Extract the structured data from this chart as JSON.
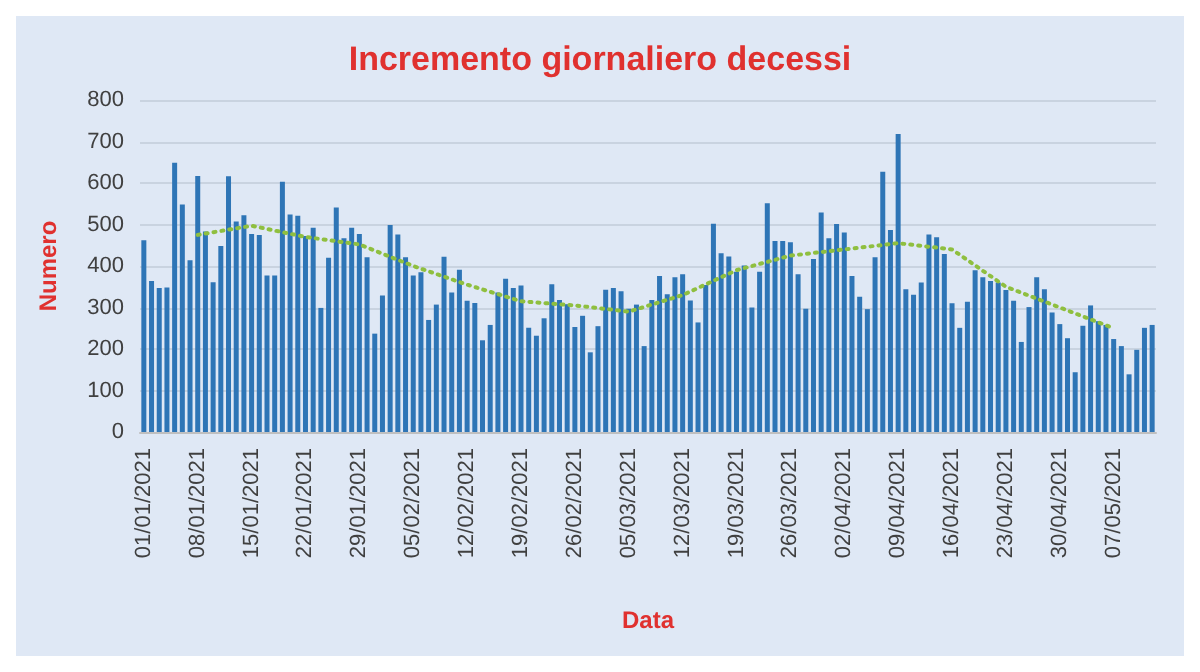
{
  "chart_data": {
    "type": "bar",
    "title": "Incremento giornaliero decessi",
    "xlabel": "Data",
    "ylabel": "Numero",
    "categories": [
      "01/01/2021",
      null,
      null,
      null,
      null,
      null,
      null,
      "08/01/2021",
      null,
      null,
      null,
      null,
      null,
      null,
      "15/01/2021",
      null,
      null,
      null,
      null,
      null,
      null,
      "22/01/2021",
      null,
      null,
      null,
      null,
      null,
      null,
      "29/01/2021",
      null,
      null,
      null,
      null,
      null,
      null,
      "05/02/2021",
      null,
      null,
      null,
      null,
      null,
      null,
      "12/02/2021",
      null,
      null,
      null,
      null,
      null,
      null,
      "19/02/2021",
      null,
      null,
      null,
      null,
      null,
      null,
      "26/02/2021",
      null,
      null,
      null,
      null,
      null,
      null,
      "05/03/2021",
      null,
      null,
      null,
      null,
      null,
      null,
      "12/03/2021",
      null,
      null,
      null,
      null,
      null,
      null,
      "19/03/2021",
      null,
      null,
      null,
      null,
      null,
      null,
      "26/03/2021",
      null,
      null,
      null,
      null,
      null,
      null,
      "02/04/2021",
      null,
      null,
      null,
      null,
      null,
      null,
      "09/04/2021",
      null,
      null,
      null,
      null,
      null,
      null,
      "16/04/2021",
      null,
      null,
      null,
      null,
      null,
      null,
      "23/04/2021",
      null,
      null,
      null,
      null,
      null,
      null,
      "30/04/2021",
      null,
      null,
      null,
      null,
      null,
      null,
      "07/05/2021",
      null,
      null,
      null,
      null,
      null
    ],
    "series": [
      {
        "color": "#2e75b6",
        "values": [
          462,
          364,
          347,
          348,
          649,
          548,
          414,
          617,
          483,
          361,
          448,
          616,
          507,
          522,
          477,
          475,
          377,
          377,
          603,
          524,
          521,
          472,
          492,
          299,
          420,
          541,
          467,
          492,
          477,
          421,
          237,
          329,
          499,
          476,
          421,
          377,
          385,
          270,
          307,
          422,
          336,
          391,
          316,
          311,
          221,
          258,
          336,
          369,
          347,
          353,
          251,
          232,
          274,
          356,
          318,
          308,
          253,
          280,
          192,
          255,
          343,
          347,
          339,
          297,
          307,
          207,
          318,
          376,
          332,
          373,
          380,
          317,
          264,
          354,
          502,
          431,
          423,
          386,
          401,
          300,
          386,
          551,
          460,
          460,
          457,
          380,
          297,
          417,
          529,
          467,
          501,
          481,
          376,
          326,
          296,
          421,
          627,
          487,
          718,
          344,
          331,
          360,
          476,
          469,
          429,
          310,
          251,
          314,
          390,
          373,
          364,
          360,
          342,
          316,
          217,
          301,
          373,
          344,
          288,
          260,
          226,
          144,
          256,
          305,
          267,
          258,
          224,
          207,
          139,
          198,
          251,
          258
        ]
      },
      {
        "type": "line",
        "color": "#8fbf3f",
        "line_style": "dotted",
        "marker": "none",
        "x": [
          "08/01/2021",
          "15/01/2021",
          "22/01/2021",
          "29/01/2021",
          "05/02/2021",
          "12/02/2021",
          "19/02/2021",
          "26/02/2021",
          "05/03/2021",
          "12/03/2021",
          "19/03/2021",
          "26/03/2021",
          "02/04/2021",
          "09/04/2021",
          "16/04/2021",
          "23/04/2021",
          "30/04/2021",
          "07/05/2021"
        ],
        "values": [
          475,
          497,
          470,
          452,
          400,
          355,
          315,
          305,
          290,
          330,
          390,
          425,
          440,
          455,
          440,
          350,
          300,
          250
        ]
      }
    ],
    "ylim": [
      0,
      800
    ],
    "yticks": [
      0,
      100,
      200,
      300,
      400,
      500,
      600,
      700,
      800
    ],
    "grid": "y"
  }
}
